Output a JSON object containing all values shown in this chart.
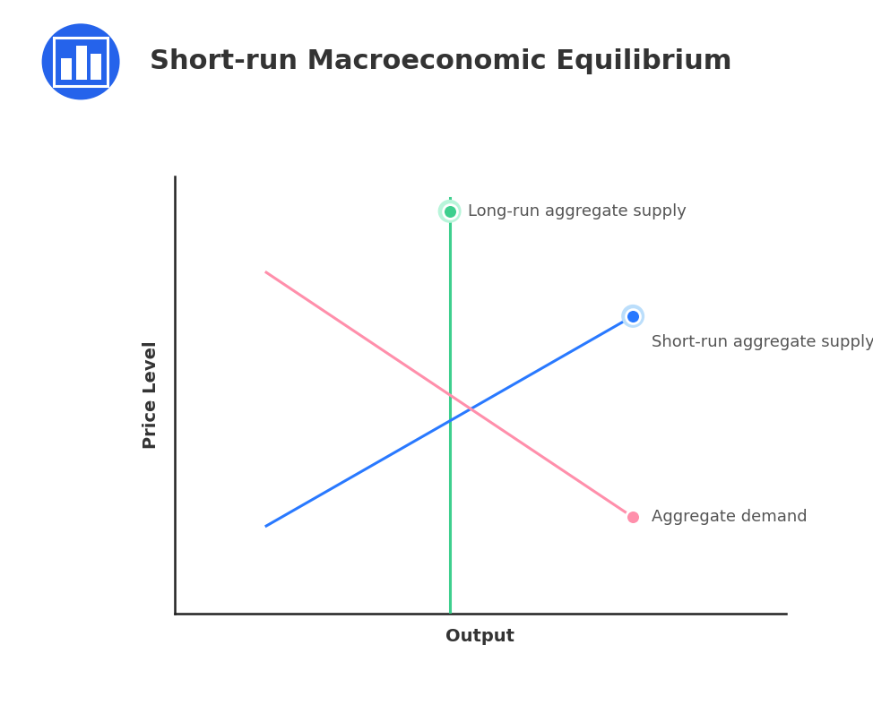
{
  "title": "Short-run Macroeconomic Equilibrium",
  "bg_color": "#ffffff",
  "title_color": "#333333",
  "title_fontsize": 22,
  "title_fontweight": "bold",
  "xlabel": "Output",
  "ylabel": "Price Level",
  "axis_label_fontsize": 14,
  "axis_label_fontweight": "bold",
  "xlim": [
    0,
    10
  ],
  "ylim": [
    0,
    10
  ],
  "lras_x": 4.5,
  "lras_y_top": 9.5,
  "lras_y_bot": 0.0,
  "lras_color": "#3ecf8e",
  "lras_label": "Long-run aggregate supply",
  "lras_dot_x": 4.5,
  "lras_dot_y": 9.2,
  "sras_x_start": 1.5,
  "sras_y_start": 2.0,
  "sras_x_end": 7.5,
  "sras_y_end": 6.8,
  "sras_color": "#2979ff",
  "sras_label": "Short-run aggregate supply",
  "sras_dot_x": 7.5,
  "sras_dot_y": 6.8,
  "ad_x_start": 1.5,
  "ad_y_start": 7.8,
  "ad_x_end": 7.5,
  "ad_y_end": 2.2,
  "ad_color": "#ff8fab",
  "ad_label": "Aggregate demand",
  "ad_dot_x": 7.5,
  "ad_dot_y": 2.2,
  "label_color": "#555555",
  "label_fontsize": 13,
  "line_width": 2.2,
  "dot_size": 100,
  "icon_color": "#2563eb"
}
